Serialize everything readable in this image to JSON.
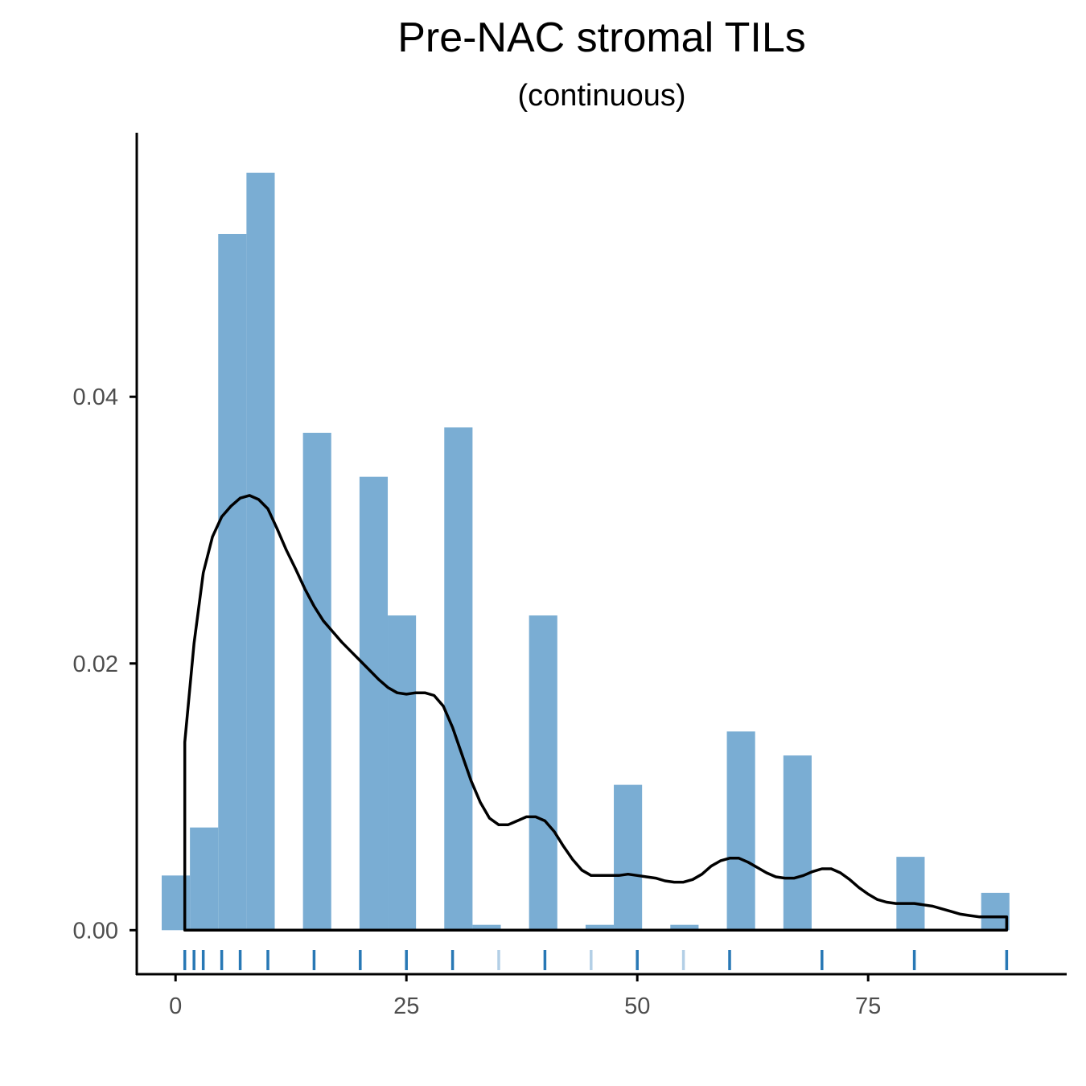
{
  "chart_data": {
    "type": "bar",
    "title": "Pre-NAC stromal TILs",
    "subtitle": "(continuous)",
    "xlabel": "",
    "ylabel": "",
    "xlim": [
      -4.2,
      96.5
    ],
    "ylim": [
      -0.0033,
      0.0598
    ],
    "x_ticks": [
      0,
      25,
      50,
      75
    ],
    "y_ticks": [
      0.0,
      0.02,
      0.04
    ],
    "x_tick_labels": [
      "0",
      "25",
      "50",
      "75"
    ],
    "y_tick_labels": [
      "0.00",
      "0.02",
      "0.04"
    ],
    "grid": false,
    "legend": "none",
    "histogram": {
      "name": "histogram",
      "color": "#7aadd3",
      "bins": [
        {
          "x0": -1.5,
          "x1": 1.56,
          "density": 0.0041
        },
        {
          "x0": 1.56,
          "x1": 4.62,
          "density": 0.0077
        },
        {
          "x0": 4.62,
          "x1": 7.68,
          "density": 0.0522
        },
        {
          "x0": 7.68,
          "x1": 10.74,
          "density": 0.0568
        },
        {
          "x0": 10.74,
          "x1": 13.8,
          "density": 0
        },
        {
          "x0": 13.8,
          "x1": 16.86,
          "density": 0.0373
        },
        {
          "x0": 16.86,
          "x1": 19.92,
          "density": 0
        },
        {
          "x0": 19.92,
          "x1": 22.98,
          "density": 0.034
        },
        {
          "x0": 22.98,
          "x1": 26.04,
          "density": 0.0236
        },
        {
          "x0": 26.04,
          "x1": 29.1,
          "density": 0
        },
        {
          "x0": 29.1,
          "x1": 32.16,
          "density": 0.0377
        },
        {
          "x0": 32.16,
          "x1": 35.22,
          "density": 0.0004
        },
        {
          "x0": 35.22,
          "x1": 38.28,
          "density": 0
        },
        {
          "x0": 38.28,
          "x1": 41.34,
          "density": 0.0236
        },
        {
          "x0": 41.34,
          "x1": 44.4,
          "density": 0
        },
        {
          "x0": 44.4,
          "x1": 47.46,
          "density": 0.0004
        },
        {
          "x0": 47.46,
          "x1": 50.52,
          "density": 0.0109
        },
        {
          "x0": 50.52,
          "x1": 53.58,
          "density": 0
        },
        {
          "x0": 53.58,
          "x1": 56.64,
          "density": 0.0004
        },
        {
          "x0": 56.64,
          "x1": 59.7,
          "density": 0
        },
        {
          "x0": 59.7,
          "x1": 62.76,
          "density": 0.0149
        },
        {
          "x0": 62.76,
          "x1": 65.82,
          "density": 0
        },
        {
          "x0": 65.82,
          "x1": 68.88,
          "density": 0.0131
        },
        {
          "x0": 68.88,
          "x1": 71.94,
          "density": 0
        },
        {
          "x0": 71.94,
          "x1": 75.0,
          "density": 0
        },
        {
          "x0": 75.0,
          "x1": 78.06,
          "density": 0
        },
        {
          "x0": 78.06,
          "x1": 81.12,
          "density": 0.0055
        },
        {
          "x0": 81.12,
          "x1": 84.18,
          "density": 0
        },
        {
          "x0": 84.18,
          "x1": 87.24,
          "density": 0
        },
        {
          "x0": 87.24,
          "x1": 90.3,
          "density": 0.0028
        }
      ]
    },
    "density_curve": {
      "name": "density",
      "color": "#000000",
      "points": [
        [
          1,
          0.0141
        ],
        [
          2,
          0.0215
        ],
        [
          3,
          0.0268
        ],
        [
          4,
          0.0295
        ],
        [
          5,
          0.031
        ],
        [
          6,
          0.0318
        ],
        [
          7,
          0.0324
        ],
        [
          8,
          0.0326
        ],
        [
          9,
          0.0323
        ],
        [
          10,
          0.0316
        ],
        [
          11,
          0.0301
        ],
        [
          12,
          0.0285
        ],
        [
          13,
          0.0271
        ],
        [
          14,
          0.0256
        ],
        [
          15,
          0.0243
        ],
        [
          16,
          0.0232
        ],
        [
          17,
          0.0224
        ],
        [
          18,
          0.0216
        ],
        [
          19,
          0.0209
        ],
        [
          20,
          0.0202
        ],
        [
          21,
          0.0195
        ],
        [
          22,
          0.0188
        ],
        [
          23,
          0.0182
        ],
        [
          24,
          0.0178
        ],
        [
          25,
          0.0177
        ],
        [
          26,
          0.0178
        ],
        [
          27,
          0.0178
        ],
        [
          28,
          0.0176
        ],
        [
          29,
          0.0168
        ],
        [
          30,
          0.0152
        ],
        [
          31,
          0.0132
        ],
        [
          32,
          0.0112
        ],
        [
          33,
          0.0096
        ],
        [
          34,
          0.0084
        ],
        [
          35,
          0.0079
        ],
        [
          36,
          0.0079
        ],
        [
          37,
          0.0082
        ],
        [
          38,
          0.0085
        ],
        [
          39,
          0.0085
        ],
        [
          40,
          0.0082
        ],
        [
          41,
          0.0074
        ],
        [
          42,
          0.0063
        ],
        [
          43,
          0.0053
        ],
        [
          44,
          0.0045
        ],
        [
          45,
          0.0041
        ],
        [
          46,
          0.0041
        ],
        [
          47,
          0.0041
        ],
        [
          48,
          0.0041
        ],
        [
          49,
          0.0042
        ],
        [
          50,
          0.0041
        ],
        [
          51,
          0.004
        ],
        [
          52,
          0.0039
        ],
        [
          53,
          0.0037
        ],
        [
          54,
          0.0036
        ],
        [
          55,
          0.0036
        ],
        [
          56,
          0.0038
        ],
        [
          57,
          0.0042
        ],
        [
          58,
          0.0048
        ],
        [
          59,
          0.0052
        ],
        [
          60,
          0.0054
        ],
        [
          61,
          0.0054
        ],
        [
          62,
          0.0051
        ],
        [
          63,
          0.0047
        ],
        [
          64,
          0.0043
        ],
        [
          65,
          0.004
        ],
        [
          66,
          0.0039
        ],
        [
          67,
          0.0039
        ],
        [
          68,
          0.0041
        ],
        [
          69,
          0.0044
        ],
        [
          70,
          0.0046
        ],
        [
          71,
          0.0046
        ],
        [
          72,
          0.0043
        ],
        [
          73,
          0.0038
        ],
        [
          74,
          0.0032
        ],
        [
          75,
          0.0027
        ],
        [
          76,
          0.0023
        ],
        [
          77,
          0.0021
        ],
        [
          78,
          0.002
        ],
        [
          79,
          0.002
        ],
        [
          80,
          0.002
        ],
        [
          81,
          0.0019
        ],
        [
          82,
          0.0018
        ],
        [
          83,
          0.0016
        ],
        [
          84,
          0.0014
        ],
        [
          85,
          0.0012
        ],
        [
          86,
          0.0011
        ],
        [
          87,
          0.001
        ],
        [
          88,
          0.001
        ],
        [
          89,
          0.001
        ],
        [
          90,
          0.001
        ]
      ]
    },
    "rug": {
      "color": "#2878b5",
      "light_color": "#b3cfe6",
      "values": [
        {
          "x": 1,
          "light": false
        },
        {
          "x": 2,
          "light": false
        },
        {
          "x": 3,
          "light": false
        },
        {
          "x": 5,
          "light": false
        },
        {
          "x": 7,
          "light": false
        },
        {
          "x": 10,
          "light": false
        },
        {
          "x": 15,
          "light": false
        },
        {
          "x": 20,
          "light": false
        },
        {
          "x": 25,
          "light": false
        },
        {
          "x": 30,
          "light": false
        },
        {
          "x": 35,
          "light": true
        },
        {
          "x": 40,
          "light": false
        },
        {
          "x": 45,
          "light": true
        },
        {
          "x": 50,
          "light": false
        },
        {
          "x": 55,
          "light": true
        },
        {
          "x": 60,
          "light": false
        },
        {
          "x": 70,
          "light": false
        },
        {
          "x": 80,
          "light": false
        },
        {
          "x": 90,
          "light": false
        }
      ]
    }
  }
}
